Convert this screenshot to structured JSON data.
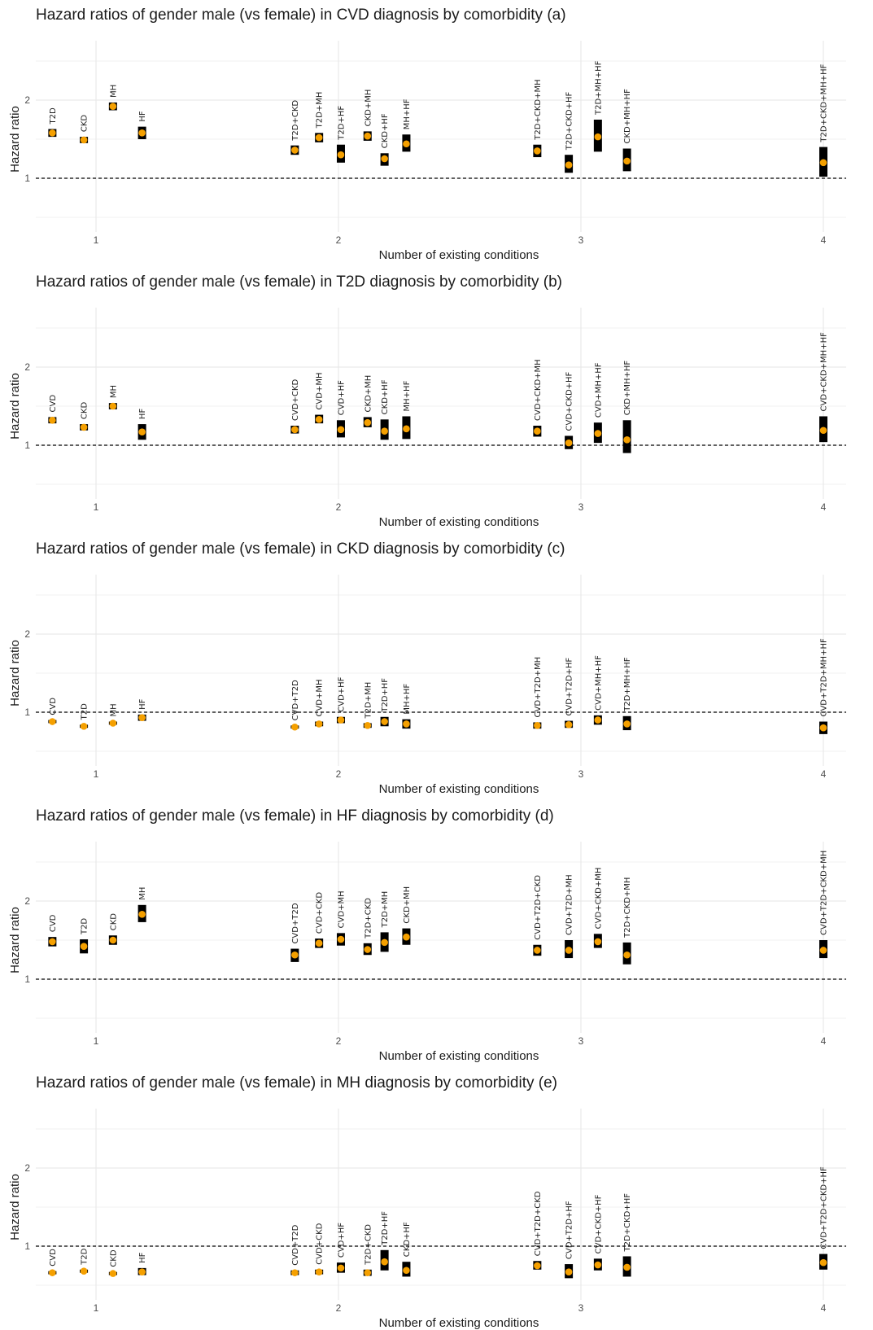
{
  "figure": {
    "xlabel": "Number of existing conditions",
    "ylabel": "Hazard ratio"
  },
  "colors": {
    "point": "#f5a000",
    "bar": "#000000",
    "reference_line": "#000000"
  },
  "chart_data": [
    {
      "type": "scatter",
      "title": "Hazard ratios of gender male (vs female) in CVD diagnosis by comorbidity (a)",
      "xlabel": "Number of existing conditions",
      "ylabel": "Hazard ratio",
      "y_ticks": [
        1,
        2
      ],
      "x_ticks": [
        1,
        2,
        3,
        4
      ],
      "ylim": [
        0.5,
        2.5
      ],
      "reference_line": 1,
      "points": [
        {
          "label": "T2D",
          "x": 0.82,
          "hr": 1.58,
          "lower": 1.53,
          "upper": 1.63
        },
        {
          "label": "CKD",
          "x": 0.95,
          "hr": 1.49,
          "lower": 1.45,
          "upper": 1.53
        },
        {
          "label": "MH",
          "x": 1.07,
          "hr": 1.92,
          "lower": 1.87,
          "upper": 1.97
        },
        {
          "label": "HF",
          "x": 1.19,
          "hr": 1.58,
          "lower": 1.5,
          "upper": 1.66
        },
        {
          "label": "T2D+CKD",
          "x": 1.82,
          "hr": 1.36,
          "lower": 1.3,
          "upper": 1.42
        },
        {
          "label": "T2D+MH",
          "x": 1.92,
          "hr": 1.52,
          "lower": 1.46,
          "upper": 1.58
        },
        {
          "label": "T2D+HF",
          "x": 2.01,
          "hr": 1.3,
          "lower": 1.2,
          "upper": 1.43
        },
        {
          "label": "CKD+MH",
          "x": 2.12,
          "hr": 1.54,
          "lower": 1.48,
          "upper": 1.6
        },
        {
          "label": "CKD+HF",
          "x": 2.19,
          "hr": 1.25,
          "lower": 1.16,
          "upper": 1.32
        },
        {
          "label": "MH+HF",
          "x": 2.28,
          "hr": 1.44,
          "lower": 1.34,
          "upper": 1.56
        },
        {
          "label": "T2D+CKD+MH",
          "x": 2.82,
          "hr": 1.35,
          "lower": 1.27,
          "upper": 1.43
        },
        {
          "label": "T2D+CKD+HF",
          "x": 2.95,
          "hr": 1.17,
          "lower": 1.07,
          "upper": 1.3
        },
        {
          "label": "T2D+MH+HF",
          "x": 3.07,
          "hr": 1.53,
          "lower": 1.34,
          "upper": 1.75
        },
        {
          "label": "CKD+MH+HF",
          "x": 3.19,
          "hr": 1.22,
          "lower": 1.09,
          "upper": 1.38
        },
        {
          "label": "T2D+CKD+MH+HF",
          "x": 4.0,
          "hr": 1.2,
          "lower": 1.02,
          "upper": 1.4
        }
      ]
    },
    {
      "type": "scatter",
      "title": "Hazard ratios of gender male (vs female) in T2D diagnosis by comorbidity (b)",
      "xlabel": "Number of existing conditions",
      "ylabel": "Hazard ratio",
      "y_ticks": [
        1,
        2
      ],
      "x_ticks": [
        1,
        2,
        3,
        4
      ],
      "ylim": [
        0.5,
        2.5
      ],
      "reference_line": 1,
      "points": [
        {
          "label": "CVD",
          "x": 0.82,
          "hr": 1.32,
          "lower": 1.28,
          "upper": 1.36
        },
        {
          "label": "CKD",
          "x": 0.95,
          "hr": 1.23,
          "lower": 1.19,
          "upper": 1.27
        },
        {
          "label": "MH",
          "x": 1.07,
          "hr": 1.5,
          "lower": 1.46,
          "upper": 1.54
        },
        {
          "label": "HF",
          "x": 1.19,
          "hr": 1.17,
          "lower": 1.07,
          "upper": 1.27
        },
        {
          "label": "CVD+CKD",
          "x": 1.82,
          "hr": 1.2,
          "lower": 1.15,
          "upper": 1.25
        },
        {
          "label": "CVD+MH",
          "x": 1.92,
          "hr": 1.33,
          "lower": 1.28,
          "upper": 1.39
        },
        {
          "label": "CVD+HF",
          "x": 2.01,
          "hr": 1.2,
          "lower": 1.1,
          "upper": 1.32
        },
        {
          "label": "CKD+MH",
          "x": 2.12,
          "hr": 1.29,
          "lower": 1.23,
          "upper": 1.36
        },
        {
          "label": "CKD+HF",
          "x": 2.19,
          "hr": 1.18,
          "lower": 1.07,
          "upper": 1.33
        },
        {
          "label": "MH+HF",
          "x": 2.28,
          "hr": 1.21,
          "lower": 1.08,
          "upper": 1.37
        },
        {
          "label": "CVD+CKD+MH",
          "x": 2.82,
          "hr": 1.18,
          "lower": 1.11,
          "upper": 1.25
        },
        {
          "label": "CVD+CKD+HF",
          "x": 2.95,
          "hr": 1.03,
          "lower": 0.95,
          "upper": 1.12
        },
        {
          "label": "CVD+MH+HF",
          "x": 3.07,
          "hr": 1.15,
          "lower": 1.03,
          "upper": 1.29
        },
        {
          "label": "CKD+MH+HF",
          "x": 3.19,
          "hr": 1.07,
          "lower": 0.9,
          "upper": 1.32
        },
        {
          "label": "CVD+CKD+MH+HF",
          "x": 4.0,
          "hr": 1.19,
          "lower": 1.04,
          "upper": 1.37
        }
      ]
    },
    {
      "type": "scatter",
      "title": "Hazard ratios of gender male (vs female) in CKD diagnosis by comorbidity (c)",
      "xlabel": "Number of existing conditions",
      "ylabel": "Hazard ratio",
      "y_ticks": [
        1,
        2
      ],
      "x_ticks": [
        1,
        2,
        3,
        4
      ],
      "ylim": [
        0.5,
        2.5
      ],
      "reference_line": 1,
      "points": [
        {
          "label": "CVD",
          "x": 0.82,
          "hr": 0.88,
          "lower": 0.86,
          "upper": 0.9
        },
        {
          "label": "T2D",
          "x": 0.95,
          "hr": 0.82,
          "lower": 0.8,
          "upper": 0.84
        },
        {
          "label": "MH",
          "x": 1.07,
          "hr": 0.86,
          "lower": 0.84,
          "upper": 0.88
        },
        {
          "label": "HF",
          "x": 1.19,
          "hr": 0.93,
          "lower": 0.89,
          "upper": 0.97
        },
        {
          "label": "CVD+T2D",
          "x": 1.82,
          "hr": 0.81,
          "lower": 0.79,
          "upper": 0.83
        },
        {
          "label": "CVD+MH",
          "x": 1.92,
          "hr": 0.85,
          "lower": 0.82,
          "upper": 0.88
        },
        {
          "label": "CVD+HF",
          "x": 2.01,
          "hr": 0.9,
          "lower": 0.86,
          "upper": 0.94
        },
        {
          "label": "T2D+MH",
          "x": 2.12,
          "hr": 0.83,
          "lower": 0.8,
          "upper": 0.86
        },
        {
          "label": "T2D+HF",
          "x": 2.19,
          "hr": 0.88,
          "lower": 0.82,
          "upper": 0.94
        },
        {
          "label": "MH+HF",
          "x": 2.28,
          "hr": 0.85,
          "lower": 0.79,
          "upper": 0.91
        },
        {
          "label": "CVD+T2D+MH",
          "x": 2.82,
          "hr": 0.83,
          "lower": 0.79,
          "upper": 0.87
        },
        {
          "label": "CVD+T2D+HF",
          "x": 2.95,
          "hr": 0.84,
          "lower": 0.8,
          "upper": 0.89
        },
        {
          "label": "CVD+MH+HF",
          "x": 3.07,
          "hr": 0.9,
          "lower": 0.84,
          "upper": 0.96
        },
        {
          "label": "T2D+MH+HF",
          "x": 3.19,
          "hr": 0.85,
          "lower": 0.77,
          "upper": 0.95
        },
        {
          "label": "CVD+T2D+MH+HF",
          "x": 4.0,
          "hr": 0.8,
          "lower": 0.72,
          "upper": 0.88
        }
      ]
    },
    {
      "type": "scatter",
      "title": "Hazard ratios of gender male (vs female) in HF diagnosis by comorbidity (d)",
      "xlabel": "Number of existing conditions",
      "ylabel": "Hazard ratio",
      "y_ticks": [
        1,
        2
      ],
      "x_ticks": [
        1,
        2,
        3,
        4
      ],
      "ylim": [
        0.5,
        2.5
      ],
      "reference_line": 1,
      "points": [
        {
          "label": "CVD",
          "x": 0.82,
          "hr": 1.48,
          "lower": 1.42,
          "upper": 1.54
        },
        {
          "label": "T2D",
          "x": 0.95,
          "hr": 1.42,
          "lower": 1.33,
          "upper": 1.51
        },
        {
          "label": "CKD",
          "x": 1.07,
          "hr": 1.5,
          "lower": 1.44,
          "upper": 1.56
        },
        {
          "label": "MH",
          "x": 1.19,
          "hr": 1.83,
          "lower": 1.73,
          "upper": 1.95
        },
        {
          "label": "CVD+T2D",
          "x": 1.82,
          "hr": 1.31,
          "lower": 1.22,
          "upper": 1.39
        },
        {
          "label": "CVD+CKD",
          "x": 1.92,
          "hr": 1.46,
          "lower": 1.4,
          "upper": 1.52
        },
        {
          "label": "CVD+MH",
          "x": 2.01,
          "hr": 1.51,
          "lower": 1.43,
          "upper": 1.59
        },
        {
          "label": "T2D+CKD",
          "x": 2.12,
          "hr": 1.38,
          "lower": 1.31,
          "upper": 1.46
        },
        {
          "label": "T2D+MH",
          "x": 2.19,
          "hr": 1.47,
          "lower": 1.35,
          "upper": 1.6
        },
        {
          "label": "CKD+MH",
          "x": 2.28,
          "hr": 1.54,
          "lower": 1.44,
          "upper": 1.65
        },
        {
          "label": "CVD+T2D+CKD",
          "x": 2.82,
          "hr": 1.37,
          "lower": 1.3,
          "upper": 1.44
        },
        {
          "label": "CVD+T2D+MH",
          "x": 2.95,
          "hr": 1.37,
          "lower": 1.27,
          "upper": 1.5
        },
        {
          "label": "CVD+CKD+MH",
          "x": 3.07,
          "hr": 1.48,
          "lower": 1.4,
          "upper": 1.58
        },
        {
          "label": "T2D+CKD+MH",
          "x": 3.19,
          "hr": 1.31,
          "lower": 1.19,
          "upper": 1.47
        },
        {
          "label": "CVD+T2D+CKD+MH",
          "x": 4.0,
          "hr": 1.37,
          "lower": 1.27,
          "upper": 1.5
        }
      ]
    },
    {
      "type": "scatter",
      "title": "Hazard ratios of gender male (vs female) in MH diagnosis by comorbidity (e)",
      "xlabel": "Number of existing conditions",
      "ylabel": "Hazard ratio",
      "y_ticks": [
        1,
        2
      ],
      "x_ticks": [
        1,
        2,
        3,
        4
      ],
      "ylim": [
        0.5,
        2.5
      ],
      "reference_line": 1,
      "points": [
        {
          "label": "CVD",
          "x": 0.82,
          "hr": 0.66,
          "lower": 0.64,
          "upper": 0.68
        },
        {
          "label": "T2D",
          "x": 0.95,
          "hr": 0.68,
          "lower": 0.66,
          "upper": 0.7
        },
        {
          "label": "CKD",
          "x": 1.07,
          "hr": 0.65,
          "lower": 0.63,
          "upper": 0.67
        },
        {
          "label": "HF",
          "x": 1.19,
          "hr": 0.67,
          "lower": 0.63,
          "upper": 0.72
        },
        {
          "label": "CVD+T2D",
          "x": 1.82,
          "hr": 0.66,
          "lower": 0.63,
          "upper": 0.69
        },
        {
          "label": "CVD+CKD",
          "x": 1.92,
          "hr": 0.67,
          "lower": 0.64,
          "upper": 0.7
        },
        {
          "label": "CVD+HF",
          "x": 2.01,
          "hr": 0.72,
          "lower": 0.66,
          "upper": 0.79
        },
        {
          "label": "T2D+CKD",
          "x": 2.12,
          "hr": 0.66,
          "lower": 0.62,
          "upper": 0.7
        },
        {
          "label": "T2D+HF",
          "x": 2.19,
          "hr": 0.8,
          "lower": 0.69,
          "upper": 0.95
        },
        {
          "label": "CKD+HF",
          "x": 2.28,
          "hr": 0.69,
          "lower": 0.61,
          "upper": 0.8
        },
        {
          "label": "CVD+T2D+CKD",
          "x": 2.82,
          "hr": 0.75,
          "lower": 0.7,
          "upper": 0.81
        },
        {
          "label": "CVD+T2D+HF",
          "x": 2.95,
          "hr": 0.67,
          "lower": 0.59,
          "upper": 0.77
        },
        {
          "label": "CVD+CKD+HF",
          "x": 3.07,
          "hr": 0.76,
          "lower": 0.69,
          "upper": 0.84
        },
        {
          "label": "T2D+CKD+HF",
          "x": 3.19,
          "hr": 0.73,
          "lower": 0.61,
          "upper": 0.87
        },
        {
          "label": "CVD+T2D+CKD+HF",
          "x": 4.0,
          "hr": 0.79,
          "lower": 0.7,
          "upper": 0.9
        }
      ]
    }
  ]
}
